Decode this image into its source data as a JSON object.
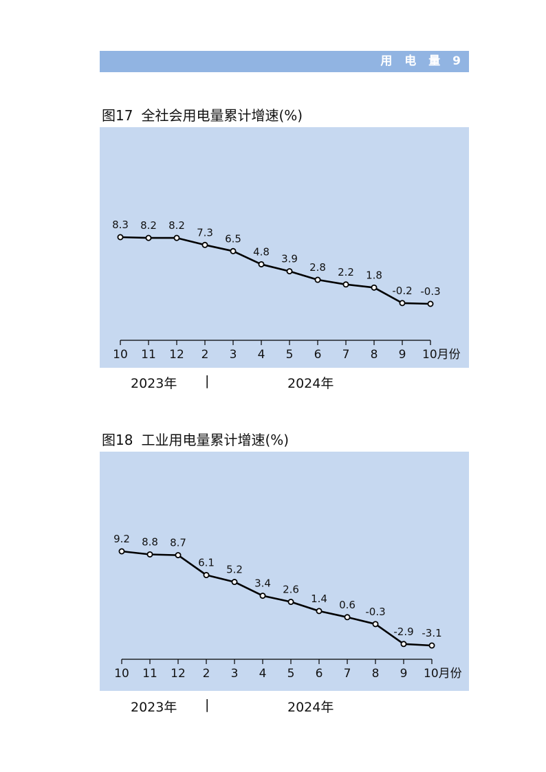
{
  "header": {
    "section_label": "用 电 量",
    "page_number": "9"
  },
  "chart_data": [
    {
      "type": "line",
      "figure_number": "图17",
      "title": "全社会用电量累计增速(%)",
      "categories": [
        "10",
        "11",
        "12",
        "2",
        "3",
        "4",
        "5",
        "6",
        "7",
        "8",
        "9",
        "10月份"
      ],
      "values": [
        8.3,
        8.2,
        8.2,
        7.3,
        6.5,
        4.8,
        3.9,
        2.8,
        2.2,
        1.8,
        -0.2,
        -0.3
      ],
      "value_labels": [
        "8.3",
        "8.2",
        "8.2",
        "7.3",
        "6.5",
        "4.8",
        "3.9",
        "2.8",
        "2.2",
        "1.8",
        "-0.2",
        "-0.3"
      ],
      "years": [
        "2023年",
        "2024年"
      ],
      "year_separator": "|",
      "ylim": [
        -5,
        12
      ],
      "grid": false,
      "line_color": "#000000",
      "background_color": "#c6d8f0"
    },
    {
      "type": "line",
      "figure_number": "图18",
      "title": "工业用电量累计增速(%)",
      "categories": [
        "10",
        "11",
        "12",
        "2",
        "3",
        "4",
        "5",
        "6",
        "7",
        "8",
        "9",
        "10月份"
      ],
      "values": [
        9.2,
        8.8,
        8.7,
        6.1,
        5.2,
        3.4,
        2.6,
        1.4,
        0.6,
        -0.3,
        -2.9,
        -3.1
      ],
      "value_labels": [
        "9.2",
        "8.8",
        "8.7",
        "6.1",
        "5.2",
        "3.4",
        "2.6",
        "1.4",
        "0.6",
        "-0.3",
        "-2.9",
        "-3.1"
      ],
      "years": [
        "2023年",
        "2024年"
      ],
      "year_separator": "|",
      "ylim": [
        -5,
        12
      ],
      "grid": false,
      "line_color": "#000000",
      "background_color": "#c6d8f0"
    }
  ]
}
